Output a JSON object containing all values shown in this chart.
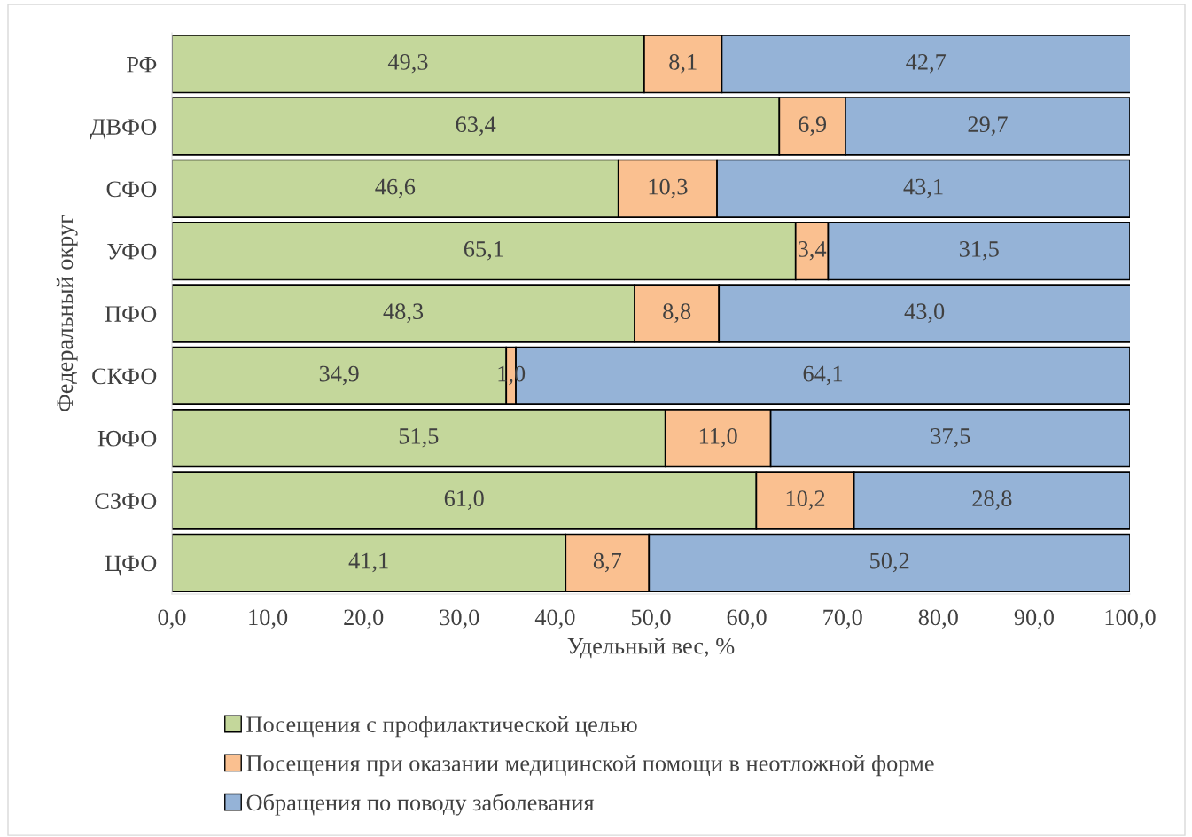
{
  "chart_data": {
    "type": "bar",
    "orientation": "horizontal",
    "stacked": true,
    "xlabel": "Удельный вес, %",
    "ylabel": "Федеральный округ",
    "categories": [
      "РФ",
      "ДВФО",
      "СФО",
      "УФО",
      "ПФО",
      "СКФО",
      "ЮФО",
      "СЗФО",
      "ЦФО"
    ],
    "series": [
      {
        "name": "Посещения с профилактической целью",
        "color": "#c4d79b",
        "values": [
          49.3,
          63.4,
          46.6,
          65.1,
          48.3,
          34.9,
          51.5,
          61.0,
          41.1
        ],
        "value_labels": [
          "49,3",
          "63,4",
          "46,6",
          "65,1",
          "48,3",
          "34,9",
          "51,5",
          "61,0",
          "41,1"
        ]
      },
      {
        "name": "Посещения при оказании медицинской помощи в неотложной форме",
        "color": "#fac090",
        "values": [
          8.1,
          6.9,
          10.3,
          3.4,
          8.8,
          1.0,
          11.0,
          10.2,
          8.7
        ],
        "value_labels": [
          "8,1",
          "6,9",
          "10,3",
          "3,4",
          "8,8",
          "1,0",
          "11,0",
          "10,2",
          "8,7"
        ]
      },
      {
        "name": "Обращения по поводу заболевания",
        "color": "#95b3d7",
        "values": [
          42.7,
          29.7,
          43.1,
          31.5,
          43.0,
          64.1,
          37.5,
          28.8,
          50.2
        ],
        "value_labels": [
          "42,7",
          "29,7",
          "43,1",
          "31,5",
          "43,0",
          "64,1",
          "37,5",
          "28,8",
          "50,2"
        ]
      }
    ],
    "xlim": [
      0,
      100
    ],
    "xticks": [
      {
        "value": 0,
        "label": "0,0"
      },
      {
        "value": 10,
        "label": "10,0"
      },
      {
        "value": 20,
        "label": "20,0"
      },
      {
        "value": 30,
        "label": "30,0"
      },
      {
        "value": 40,
        "label": "40,0"
      },
      {
        "value": 50,
        "label": "50,0"
      },
      {
        "value": 60,
        "label": "60,0"
      },
      {
        "value": 70,
        "label": "70,0"
      },
      {
        "value": 80,
        "label": "80,0"
      },
      {
        "value": 90,
        "label": "90,0"
      },
      {
        "value": 100,
        "label": "100,0"
      }
    ],
    "legend": "bottom",
    "grid": false
  }
}
